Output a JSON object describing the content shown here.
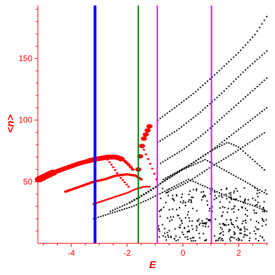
{
  "chart_data": {
    "type": "scatter",
    "xlabel": "E",
    "ylabel": "<n>",
    "xlim": [
      -5.2,
      3.05
    ],
    "ylim": [
      0,
      193
    ],
    "x_ticks": [
      -4,
      -2,
      0,
      2
    ],
    "x_tick_labels": [
      "-4",
      "-2",
      "0",
      "2"
    ],
    "y_ticks": [
      50,
      100,
      150
    ],
    "y_tick_labels": [
      "50",
      "100",
      "150"
    ],
    "grid": false,
    "legend": "none",
    "colors": {
      "axis": "#ff0000",
      "levels": "#000000",
      "weighted": "#ff0000",
      "line_blue": "#0000ff",
      "line_green": "#008000",
      "line_magenta": "#ff00ff"
    },
    "vertical_lines": [
      {
        "x": -3.15,
        "color": "#0000ff",
        "weight": "thick"
      },
      {
        "x": -1.6,
        "color": "#008000",
        "weight": "normal"
      },
      {
        "x": -0.92,
        "color": "#ff00ff",
        "weight": "normal"
      },
      {
        "x": 1.02,
        "color": "#ff00ff",
        "weight": "normal"
      }
    ],
    "series": [
      {
        "style": "black-dots",
        "curves": [
          {
            "x": [
              -0.9,
              -0.3,
              0.4,
              1.2,
              2.0,
              2.6,
              3.0
            ],
            "y": [
              100,
              110,
              122,
              138,
              155,
              170,
              184
            ]
          },
          {
            "x": [
              -0.9,
              -0.2,
              0.6,
              1.4,
              2.2,
              3.0
            ],
            "y": [
              82,
              92,
              106,
              122,
              140,
              156
            ]
          },
          {
            "x": [
              -0.8,
              0.0,
              0.8,
              1.6,
              2.4,
              3.0
            ],
            "y": [
              65,
              76,
              90,
              106,
              122,
              134
            ]
          },
          {
            "x": [
              -0.7,
              0.2,
              1.0,
              1.8,
              2.6,
              3.0
            ],
            "y": [
              52,
              63,
              75,
              89,
              103,
              110
            ]
          },
          {
            "x": [
              -0.6,
              0.2,
              1.0,
              1.8,
              2.6,
              3.0
            ],
            "y": [
              41,
              50,
              62,
              73,
              85,
              91
            ]
          },
          {
            "x": [
              -1.9,
              -1.2,
              -0.6,
              0.2,
              1.0,
              1.6,
              2.0,
              2.4,
              3.0
            ],
            "y": [
              33,
              42,
              52,
              63,
              75,
              82,
              78,
              70,
              58
            ]
          },
          {
            "x": [
              -2.6,
              -2.0,
              -1.4,
              -0.7,
              0.0,
              0.8,
              1.6,
              2.4,
              3.0
            ],
            "y": [
              26,
              32,
              40,
              50,
              60,
              68,
              58,
              48,
              40
            ]
          },
          {
            "x": [
              -3.2,
              -2.5,
              -1.8,
              -1.2,
              -0.5,
              0.2,
              1.0,
              1.8,
              2.6,
              3.0
            ],
            "y": [
              20,
              25,
              30,
              36,
              44,
              52,
              44,
              36,
              30,
              26
            ]
          }
        ],
        "scatter_x_range": [
          -0.9,
          3.0
        ],
        "scatter_y_range": [
          2,
          45
        ]
      },
      {
        "style": "red-markers",
        "curves": [
          {
            "x": [
              -5.15,
              -4.7,
              -4.2,
              -3.7,
              -3.2,
              -2.7,
              -2.4,
              -2.15,
              -1.95,
              -1.8
            ],
            "y": [
              52,
              57,
              61,
              65,
              68,
              70,
              70,
              68,
              64,
              60
            ]
          },
          {
            "x": [
              -4.2,
              -3.7,
              -3.2,
              -2.8,
              -2.4,
              -2.0,
              -1.7,
              -1.5
            ],
            "y": [
              42,
              46,
              50,
              52,
              55,
              56,
              55,
              52
            ]
          },
          {
            "x": [
              -3.2,
              -2.8,
              -2.4,
              -2.0,
              -1.7,
              -1.4,
              -1.2
            ],
            "y": [
              32,
              35,
              38,
              41,
              44,
              46,
              46
            ]
          },
          {
            "x": [
              -1.6,
              -1.5,
              -1.4,
              -1.3,
              -1.2
            ],
            "y": [
              60,
              76,
              85,
              90,
              95
            ]
          },
          {
            "x": [
              -1.4,
              -1.2,
              -1.05,
              -0.95
            ],
            "y": [
              76,
              66,
              58,
              52
            ]
          },
          {
            "x": [
              -2.7,
              -2.5,
              -2.3,
              -2.1,
              -1.95
            ],
            "y": [
              68,
              62,
              55,
              50,
              46
            ]
          }
        ]
      }
    ]
  }
}
